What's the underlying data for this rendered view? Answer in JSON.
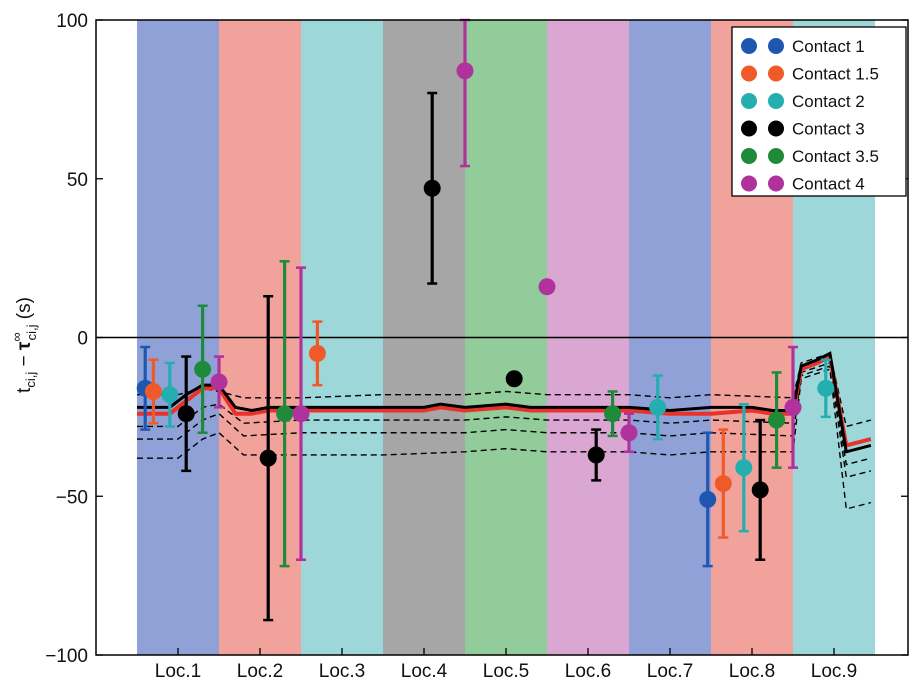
{
  "chart_data": {
    "type": "scatter",
    "title": "",
    "xlabel": "",
    "ylabel_parts": {
      "t": "t",
      "t_sub": "ci,j",
      "minus": " − ",
      "tau": "τ",
      "tau_sub": "ci,j",
      "tau_sup": "∞",
      "unit": " (s)"
    },
    "ylim": [
      -100,
      100
    ],
    "yticks": [
      100,
      50,
      0,
      -50,
      -100
    ],
    "yticklabels": [
      "100",
      "50",
      "0",
      "−50",
      "−100"
    ],
    "categories": [
      "Loc.1",
      "Loc.2",
      "Loc.3",
      "Loc.4",
      "Loc.5",
      "Loc.6",
      "Loc.7",
      "Loc.8",
      "Loc.9"
    ],
    "band_colors": [
      "#8fa1d6",
      "#f1a39b",
      "#9ed7d9",
      "#a6a6a6",
      "#93cc9b",
      "#daa6d2",
      "#8fa1d6",
      "#f1a39b",
      "#9ed7d9"
    ],
    "zero_line": 0,
    "legend_position": "top-right",
    "series": [
      {
        "name": "Contact 1",
        "color": "#1f57b0",
        "points": [
          {
            "x": 0.1,
            "y": -16,
            "err": 13
          },
          {
            "x": 6.96,
            "y": -51,
            "err": 21
          }
        ]
      },
      {
        "name": "Contact 1.5",
        "color": "#f05a28",
        "points": [
          {
            "x": 0.2,
            "y": -17,
            "err": 10
          },
          {
            "x": 2.2,
            "y": -5,
            "err": 10
          },
          {
            "x": 7.15,
            "y": -46,
            "err": 17
          }
        ]
      },
      {
        "name": "Contact 2",
        "color": "#25aeb0",
        "points": [
          {
            "x": 0.4,
            "y": -18,
            "err": 10
          },
          {
            "x": 6.35,
            "y": -22,
            "err": 10
          },
          {
            "x": 7.4,
            "y": -41,
            "err": 20
          },
          {
            "x": 8.4,
            "y": -16,
            "err": 9
          }
        ]
      },
      {
        "name": "Contact 3",
        "color": "#000000",
        "points": [
          {
            "x": 0.6,
            "y": -24,
            "err": 18
          },
          {
            "x": 1.6,
            "y": -38,
            "err": 51
          },
          {
            "x": 3.6,
            "y": 47,
            "err": 30
          },
          {
            "x": 4.6,
            "y": -13,
            "err": 0
          },
          {
            "x": 5.6,
            "y": -37,
            "err": 8
          },
          {
            "x": 7.6,
            "y": -48,
            "err": 22
          }
        ]
      },
      {
        "name": "Contact 3.5",
        "color": "#1f8b3a",
        "points": [
          {
            "x": 0.8,
            "y": -10,
            "err": 20
          },
          {
            "x": 1.8,
            "y": -24,
            "err": 48
          },
          {
            "x": 5.8,
            "y": -24,
            "err": 7
          },
          {
            "x": 7.8,
            "y": -26,
            "err": 15
          }
        ]
      },
      {
        "name": "Contact 4",
        "color": "#b0329c",
        "points": [
          {
            "x": 1.0,
            "y": -14,
            "err": 8
          },
          {
            "x": 2.0,
            "y": -24,
            "err": 46
          },
          {
            "x": 4.0,
            "y": 84,
            "err": 30
          },
          {
            "x": 5.0,
            "y": 16,
            "err": 0
          },
          {
            "x": 6.0,
            "y": -30,
            "err": 6
          },
          {
            "x": 8.0,
            "y": -22,
            "err": 19
          }
        ]
      }
    ],
    "model_lines": {
      "red": {
        "color": "#e8322a",
        "points": [
          [
            0,
            -24
          ],
          [
            0.2,
            -24
          ],
          [
            0.4,
            -24
          ],
          [
            0.6,
            -20
          ],
          [
            0.8,
            -16
          ],
          [
            1.0,
            -16
          ],
          [
            1.2,
            -24
          ],
          [
            1.4,
            -24
          ],
          [
            1.6,
            -23
          ],
          [
            2,
            -23
          ],
          [
            2.4,
            -23
          ],
          [
            3,
            -23
          ],
          [
            3.5,
            -23
          ],
          [
            3.7,
            -22
          ],
          [
            4,
            -23
          ],
          [
            4.5,
            -22
          ],
          [
            4.8,
            -23
          ],
          [
            5.5,
            -23
          ],
          [
            6,
            -23
          ],
          [
            6.5,
            -24
          ],
          [
            7,
            -24
          ],
          [
            7.5,
            -23
          ],
          [
            7.75,
            -24
          ],
          [
            8,
            -24
          ],
          [
            8.1,
            -10
          ],
          [
            8.3,
            -8
          ],
          [
            8.45,
            -6
          ],
          [
            8.65,
            -34
          ],
          [
            8.95,
            -32
          ]
        ]
      },
      "black": {
        "color": "#000000",
        "points": [
          [
            0,
            -22
          ],
          [
            0.2,
            -22
          ],
          [
            0.4,
            -22
          ],
          [
            0.6,
            -18
          ],
          [
            0.8,
            -15
          ],
          [
            1.0,
            -15
          ],
          [
            1.2,
            -22
          ],
          [
            1.4,
            -23
          ],
          [
            1.6,
            -22
          ],
          [
            2,
            -22
          ],
          [
            2.4,
            -22
          ],
          [
            3,
            -22
          ],
          [
            3.5,
            -22
          ],
          [
            3.7,
            -21
          ],
          [
            4,
            -22
          ],
          [
            4.5,
            -21
          ],
          [
            4.8,
            -22
          ],
          [
            5.5,
            -22
          ],
          [
            6,
            -22
          ],
          [
            6.5,
            -23
          ],
          [
            7,
            -22
          ],
          [
            7.5,
            -22
          ],
          [
            7.75,
            -23
          ],
          [
            8,
            -23
          ],
          [
            8.1,
            -9
          ],
          [
            8.3,
            -7
          ],
          [
            8.45,
            -5
          ],
          [
            8.65,
            -36
          ],
          [
            8.95,
            -34
          ]
        ]
      },
      "dashed": [
        [
          [
            0,
            -18
          ],
          [
            0.5,
            -18
          ],
          [
            0.8,
            -16
          ],
          [
            1.0,
            -17
          ],
          [
            1.3,
            -19
          ],
          [
            2,
            -19
          ],
          [
            3,
            -18
          ],
          [
            4,
            -18
          ],
          [
            4.5,
            -17
          ],
          [
            5,
            -18
          ],
          [
            6,
            -18
          ],
          [
            6.5,
            -19
          ],
          [
            7,
            -18
          ],
          [
            8,
            -19
          ],
          [
            8.1,
            -8
          ],
          [
            8.45,
            -5
          ],
          [
            8.65,
            -28
          ],
          [
            8.95,
            -26
          ]
        ],
        [
          [
            0,
            -28
          ],
          [
            0.5,
            -28
          ],
          [
            0.8,
            -22
          ],
          [
            1.0,
            -21
          ],
          [
            1.3,
            -27
          ],
          [
            2,
            -26
          ],
          [
            3,
            -26
          ],
          [
            4,
            -26
          ],
          [
            4.5,
            -25
          ],
          [
            5,
            -26
          ],
          [
            6,
            -26
          ],
          [
            6.5,
            -27
          ],
          [
            7,
            -26
          ],
          [
            8,
            -27
          ],
          [
            8.1,
            -11
          ],
          [
            8.45,
            -8
          ],
          [
            8.65,
            -40
          ],
          [
            8.95,
            -38
          ]
        ],
        [
          [
            0,
            -32
          ],
          [
            0.5,
            -32
          ],
          [
            0.8,
            -26
          ],
          [
            1.0,
            -24
          ],
          [
            1.3,
            -31
          ],
          [
            2,
            -30
          ],
          [
            3,
            -30
          ],
          [
            4,
            -30
          ],
          [
            4.5,
            -29
          ],
          [
            5,
            -30
          ],
          [
            6,
            -30
          ],
          [
            6.5,
            -31
          ],
          [
            7,
            -30
          ],
          [
            8,
            -31
          ],
          [
            8.1,
            -12
          ],
          [
            8.45,
            -9
          ],
          [
            8.65,
            -44
          ],
          [
            8.95,
            -42
          ]
        ],
        [
          [
            0,
            -38
          ],
          [
            0.5,
            -38
          ],
          [
            0.8,
            -32
          ],
          [
            1.0,
            -30
          ],
          [
            1.3,
            -37
          ],
          [
            2,
            -37
          ],
          [
            3,
            -37
          ],
          [
            4,
            -36
          ],
          [
            4.5,
            -35
          ],
          [
            5,
            -36
          ],
          [
            6,
            -36
          ],
          [
            6.5,
            -37
          ],
          [
            7,
            -36
          ],
          [
            8,
            -36
          ],
          [
            8.1,
            -13
          ],
          [
            8.45,
            -10
          ],
          [
            8.65,
            -54
          ],
          [
            8.95,
            -52
          ]
        ]
      ]
    }
  }
}
